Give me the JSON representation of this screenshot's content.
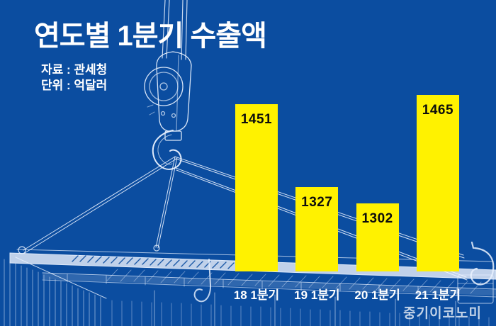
{
  "title": "연도별 1분기 수출액",
  "source_label": "자료 : 관세청",
  "unit_label": "단위 : 억달러",
  "watermark": "중기이코노미",
  "colors": {
    "background": "#0B4DA0",
    "bar": "#FFF200",
    "bar_label": "#0D0D0D",
    "text": "#FFFFFF",
    "line_art": "#EAF2FF"
  },
  "chart_data": {
    "type": "bar",
    "title": "연도별 1분기 수출액",
    "source": "자료 : 관세청",
    "unit": "억달러",
    "categories": [
      "18 1분기",
      "19 1분기",
      "20 1분기",
      "21 1분기"
    ],
    "values": [
      1451,
      1327,
      1302,
      1465
    ],
    "xlabel": "",
    "ylabel": "",
    "ylim": [
      1200,
      1470
    ],
    "grid": false,
    "legend": false,
    "data_labels": true,
    "bar_color": "#FFF200"
  }
}
